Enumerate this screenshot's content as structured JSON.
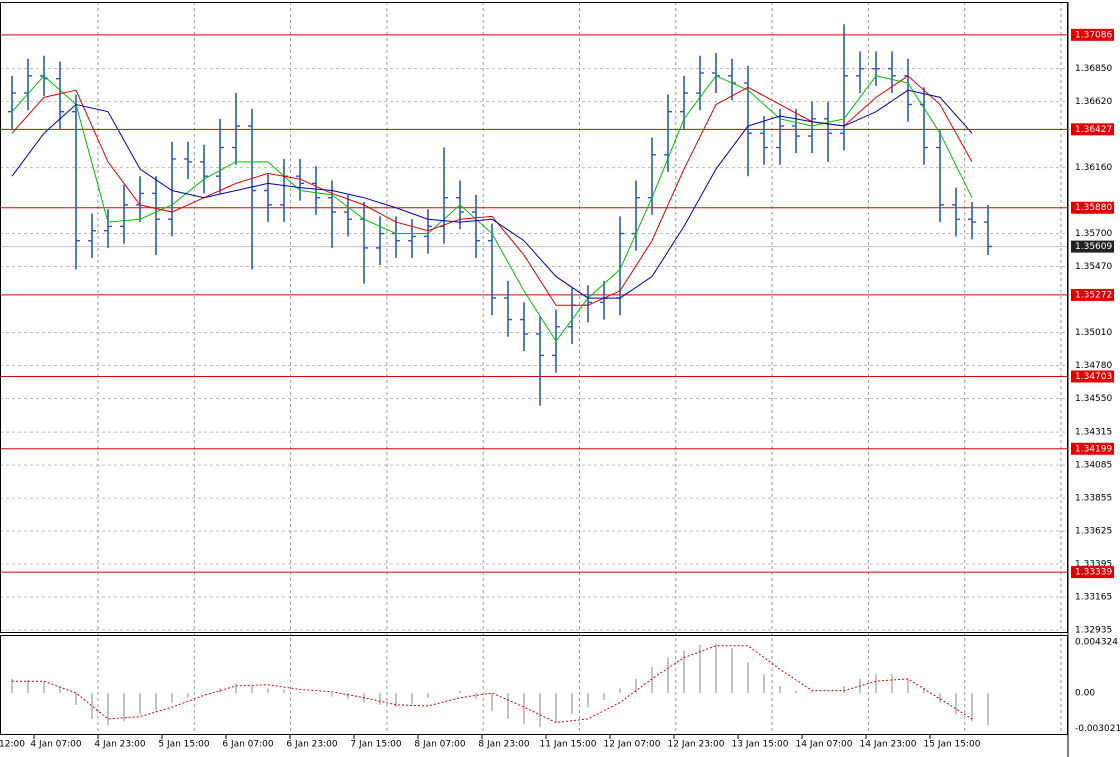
{
  "chart_data": [
    {
      "type": "ohlc",
      "categories": [
        "12:00",
        null,
        null,
        null,
        "4 Jan 07:00",
        null,
        null,
        null,
        "4 Jan 23:00",
        null,
        null,
        null,
        "5 Jan 15:00",
        null,
        null,
        null,
        "6 Jan 07:00",
        null,
        null,
        null,
        "6 Jan 23:00",
        null,
        null,
        null,
        "7 Jan 15:00",
        null,
        null,
        null,
        "8 Jan 07:00",
        null,
        null,
        null,
        "8 Jan 23:00",
        null,
        null,
        null,
        "11 Jan 15:00",
        null,
        null,
        null,
        "12 Jan 07:00",
        null,
        null,
        null,
        "12 Jan 23:00",
        null,
        null,
        null,
        "13 Jan 15:00",
        null,
        null,
        null,
        "14 Jan 07:00",
        null,
        null,
        null,
        "14 Jan 23:00",
        null,
        null,
        null,
        "15 Jan 15:00",
        null
      ],
      "open": [
        1.3655,
        1.3668,
        1.368,
        1.3678,
        1.3655,
        1.3565,
        1.3572,
        1.3575,
        1.359,
        1.3598,
        1.358,
        1.3622,
        1.362,
        1.361,
        1.363,
        1.3645,
        1.36,
        1.359,
        1.361,
        1.3605,
        1.3595,
        1.3585,
        1.358,
        1.356,
        1.357,
        1.3565,
        1.3568,
        1.3575,
        1.3595,
        1.3585,
        1.3565,
        1.3525,
        1.351,
        1.35,
        1.3485,
        1.3505,
        1.352,
        1.3522,
        1.3525,
        1.357,
        1.3595,
        1.3625,
        1.3655,
        1.3668,
        1.3682,
        1.368,
        1.3675,
        1.364,
        1.363,
        1.3645,
        1.3638,
        1.365,
        1.364,
        1.368,
        1.3685,
        1.3685,
        1.368,
        1.366,
        1.363,
        1.359,
        1.358,
        1.3578
      ],
      "high": [
        1.368,
        1.3692,
        1.3694,
        1.369,
        1.3667,
        1.3584,
        1.3587,
        1.3604,
        1.361,
        1.361,
        1.3634,
        1.3634,
        1.3632,
        1.365,
        1.3668,
        1.3657,
        1.3612,
        1.3622,
        1.3622,
        1.3617,
        1.3607,
        1.3597,
        1.3592,
        1.3582,
        1.3582,
        1.358,
        1.3587,
        1.363,
        1.3607,
        1.3597,
        1.3577,
        1.3537,
        1.3522,
        1.3512,
        1.3517,
        1.3532,
        1.3534,
        1.3537,
        1.3582,
        1.3607,
        1.3637,
        1.3667,
        1.368,
        1.3694,
        1.3696,
        1.3692,
        1.3687,
        1.3652,
        1.3657,
        1.3657,
        1.3662,
        1.3662,
        1.3716,
        1.3697,
        1.3697,
        1.3697,
        1.3692,
        1.3672,
        1.3642,
        1.3602,
        1.3592,
        1.359
      ],
      "low": [
        1.3643,
        1.3656,
        1.3666,
        1.3643,
        1.3545,
        1.3553,
        1.356,
        1.3563,
        1.3578,
        1.3555,
        1.3568,
        1.3608,
        1.3598,
        1.3598,
        1.3618,
        1.3545,
        1.3578,
        1.3578,
        1.3593,
        1.3583,
        1.356,
        1.3568,
        1.3535,
        1.3548,
        1.3553,
        1.3553,
        1.3556,
        1.3563,
        1.3573,
        1.3553,
        1.3513,
        1.3498,
        1.3488,
        1.345,
        1.3473,
        1.3493,
        1.3508,
        1.351,
        1.3513,
        1.3558,
        1.3583,
        1.3613,
        1.3643,
        1.3656,
        1.3668,
        1.3663,
        1.361,
        1.3618,
        1.3618,
        1.3626,
        1.3626,
        1.362,
        1.3628,
        1.3668,
        1.3673,
        1.3668,
        1.3648,
        1.3618,
        1.3578,
        1.3568,
        1.3566,
        1.3555
      ],
      "close": [
        1.3668,
        1.368,
        1.3678,
        1.3655,
        1.3565,
        1.3572,
        1.3575,
        1.359,
        1.3598,
        1.358,
        1.3622,
        1.362,
        1.361,
        1.363,
        1.3645,
        1.36,
        1.359,
        1.361,
        1.3605,
        1.3595,
        1.3585,
        1.358,
        1.356,
        1.357,
        1.3565,
        1.3568,
        1.3575,
        1.3595,
        1.3585,
        1.3565,
        1.3525,
        1.351,
        1.35,
        1.3485,
        1.3505,
        1.352,
        1.3522,
        1.3525,
        1.357,
        1.3595,
        1.3625,
        1.3655,
        1.3668,
        1.3682,
        1.368,
        1.3675,
        1.364,
        1.363,
        1.3645,
        1.3638,
        1.365,
        1.364,
        1.368,
        1.3685,
        1.3685,
        1.368,
        1.366,
        1.363,
        1.359,
        1.358,
        1.3578,
        1.3561
      ],
      "color": "#2f55c9",
      "series": [
        {
          "color": "#00c000",
          "x": [
            0,
            2,
            4,
            6,
            8,
            10,
            12,
            14,
            16,
            18,
            20,
            22,
            24,
            26,
            28,
            30,
            32,
            34,
            36,
            38,
            40,
            42,
            44,
            46,
            48,
            50,
            52,
            54,
            56,
            58,
            60
          ],
          "values": [
            1.3655,
            1.368,
            1.366,
            1.3578,
            1.358,
            1.359,
            1.3608,
            1.362,
            1.362,
            1.36,
            1.3597,
            1.358,
            1.357,
            1.357,
            1.359,
            1.357,
            1.353,
            1.3495,
            1.3525,
            1.3545,
            1.3595,
            1.365,
            1.368,
            1.367,
            1.365,
            1.3645,
            1.365,
            1.368,
            1.3675,
            1.364,
            1.3595
          ]
        },
        {
          "color": "#e00000",
          "x": [
            0,
            2,
            4,
            6,
            8,
            10,
            12,
            14,
            16,
            18,
            20,
            22,
            24,
            26,
            28,
            30,
            32,
            34,
            36,
            38,
            40,
            42,
            44,
            46,
            48,
            50,
            52,
            54,
            56,
            58,
            60
          ],
          "values": [
            1.364,
            1.3665,
            1.367,
            1.362,
            1.359,
            1.3585,
            1.3595,
            1.3605,
            1.3612,
            1.3608,
            1.3598,
            1.359,
            1.3578,
            1.3572,
            1.358,
            1.3582,
            1.3555,
            1.352,
            1.352,
            1.353,
            1.3565,
            1.3615,
            1.366,
            1.3672,
            1.366,
            1.3648,
            1.3645,
            1.3665,
            1.368,
            1.366,
            1.362
          ]
        },
        {
          "color": "#0000b0",
          "x": [
            0,
            2,
            4,
            6,
            8,
            10,
            12,
            14,
            16,
            18,
            20,
            22,
            24,
            26,
            28,
            30,
            32,
            34,
            36,
            38,
            40,
            42,
            44,
            46,
            48,
            50,
            52,
            54,
            56,
            58,
            60
          ],
          "values": [
            1.361,
            1.364,
            1.366,
            1.3655,
            1.3615,
            1.36,
            1.3595,
            1.36,
            1.3605,
            1.3602,
            1.36,
            1.3595,
            1.3588,
            1.358,
            1.3578,
            1.358,
            1.3565,
            1.354,
            1.3525,
            1.3525,
            1.354,
            1.3575,
            1.3615,
            1.3645,
            1.3652,
            1.3648,
            1.3645,
            1.3655,
            1.367,
            1.3665,
            1.364
          ]
        }
      ],
      "ylim": [
        1.32921,
        1.37315
      ],
      "yticks": [
        {
          "value": 1.3685,
          "label": "1.36850"
        },
        {
          "value": 1.3662,
          "label": "1.36620"
        },
        {
          "value": 1.3616,
          "label": "1.36160"
        },
        {
          "value": 1.357,
          "label": "1.35700"
        },
        {
          "value": 1.3547,
          "label": "1.35470"
        },
        {
          "value": 1.3501,
          "label": "1.35010"
        },
        {
          "value": 1.3478,
          "label": "1.34780"
        },
        {
          "value": 1.3455,
          "label": "1.34550"
        },
        1.34315,
        1.34085,
        1.33855,
        1.33625,
        1.33395,
        1.33165,
        1.32935
      ],
      "grid": true,
      "levels": [
        1.37086,
        1.36427,
        {
          "value": 1.3588,
          "label": "1.35880"
        },
        1.35272,
        1.34703,
        1.34199,
        1.33339
      ],
      "level_color": "#e00000",
      "last_price": 1.35609
    },
    {
      "type": "oscillator",
      "values": [
        0.0012,
        0.0011,
        0.001,
        0.0005,
        -0.001,
        -0.0022,
        -0.0027,
        -0.0024,
        -0.0018,
        -0.0015,
        -0.0008,
        -0.0004,
        0.0,
        0.0004,
        0.0008,
        0.0006,
        0.0004,
        0.0003,
        0.0001,
        -0.0001,
        -0.0003,
        -0.0005,
        -0.0008,
        -0.001,
        -0.0012,
        -0.0009,
        -0.0004,
        0.0,
        0.0002,
        -0.0005,
        -0.0015,
        -0.0022,
        -0.0026,
        -0.0029,
        -0.0025,
        -0.0018,
        -0.0012,
        -0.0006,
        0.0004,
        0.0012,
        0.0022,
        0.003,
        0.0036,
        0.0041,
        0.0042,
        0.0038,
        0.0026,
        0.0016,
        0.0006,
        0.0002,
        0.0001,
        0.0,
        0.0006,
        0.0012,
        0.0016,
        0.0016,
        0.0012,
        0.0004,
        -0.0008,
        -0.0018,
        -0.0024,
        -0.0027
      ],
      "color": "#b0b0b0",
      "signal": {
        "color": "#e00000",
        "x": [
          0,
          2,
          4,
          6,
          8,
          10,
          12,
          14,
          16,
          18,
          20,
          22,
          24,
          26,
          28,
          30,
          32,
          34,
          36,
          38,
          40,
          42,
          44,
          46,
          48,
          50,
          52,
          54,
          56,
          58,
          60
        ],
        "values": [
          0.001,
          0.001,
          0.0,
          -0.0022,
          -0.002,
          -0.0012,
          -0.0002,
          0.0006,
          0.0007,
          0.0003,
          0.0001,
          -0.0004,
          -0.001,
          -0.0011,
          -0.0004,
          0.0,
          -0.0012,
          -0.0025,
          -0.0022,
          -0.0008,
          0.0012,
          0.003,
          0.004,
          0.004,
          0.002,
          0.0002,
          0.0002,
          0.001,
          0.0012,
          -0.0005,
          -0.0022
        ]
      },
      "ylim": [
        -0.00356,
        0.00483
      ],
      "yticks": [
        0.004324,
        {
          "value": 0,
          "label": "0.00"
        },
        -0.003021
      ]
    }
  ]
}
